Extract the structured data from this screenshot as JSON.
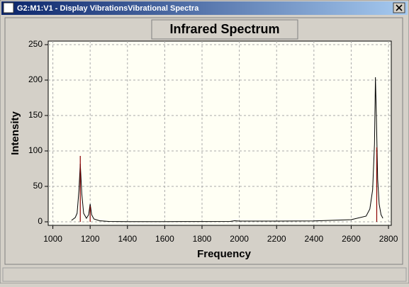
{
  "window": {
    "title": "G2:M1:V1 - Display VibrationsVibrational Spectra"
  },
  "chart_data": {
    "type": "line",
    "title": "Infrared Spectrum",
    "x_label": "Frequency",
    "y_label": "Intensity",
    "xlim": [
      975,
      2815
    ],
    "ylim": [
      -5,
      255
    ],
    "xticks": [
      1000,
      1200,
      1400,
      1600,
      1800,
      2000,
      2200,
      2400,
      2600,
      2800
    ],
    "yticks": [
      0,
      50,
      100,
      150,
      200,
      250
    ],
    "grid": true,
    "series": [
      {
        "color": "#000000",
        "style": "line",
        "x": [
          1100,
          1120,
          1130,
          1140,
          1147,
          1155,
          1165,
          1180,
          1192,
          1200,
          1208,
          1220,
          1250,
          1300,
          1400,
          1600,
          1800,
          1950,
          1975,
          2000,
          2200,
          2400,
          2600,
          2680,
          2700,
          2715,
          2725,
          2730,
          2735,
          2742,
          2750,
          2760,
          2770
        ],
        "values": [
          2,
          6,
          12,
          45,
          82,
          40,
          12,
          5,
          10,
          25,
          10,
          4,
          1.5,
          0.5,
          0.3,
          0.3,
          0.4,
          0.5,
          1.5,
          1,
          1,
          1.2,
          3,
          8,
          18,
          45,
          110,
          204,
          150,
          60,
          25,
          10,
          5
        ]
      },
      {
        "color": "#8b0000",
        "style": "stick",
        "x": [
          1147,
          1200,
          2737
        ],
        "values": [
          93,
          22,
          105
        ]
      }
    ]
  }
}
